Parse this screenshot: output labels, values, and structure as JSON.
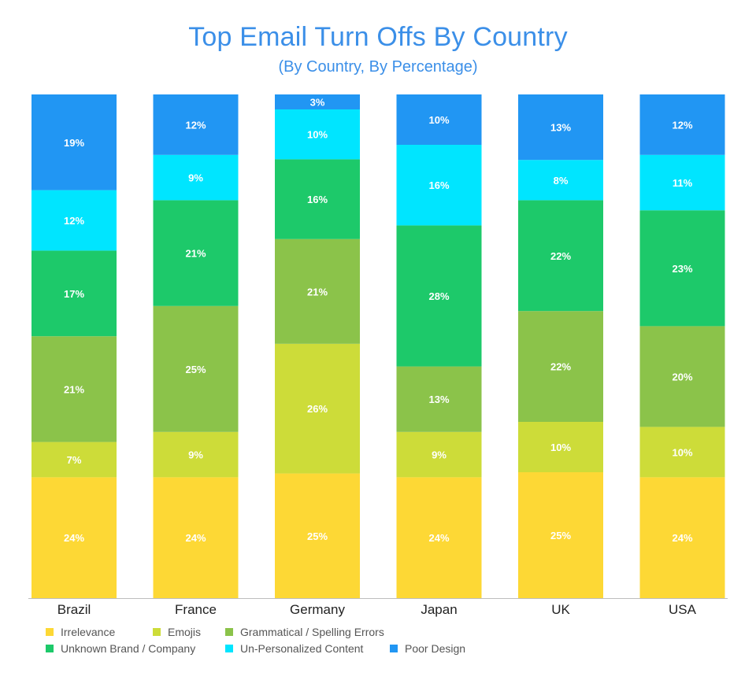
{
  "chart_data": {
    "type": "bar",
    "stacked": true,
    "percent_stacked": true,
    "title": "Top Email Turn Offs By Country",
    "subtitle": "(By Country, By Percentage)",
    "xlabel": "",
    "ylabel": "",
    "ylim": [
      0,
      100
    ],
    "grid": false,
    "legend_position": "bottom-left",
    "categories": [
      "Brazil",
      "France",
      "Germany",
      "Japan",
      "UK",
      "USA"
    ],
    "series": [
      {
        "name": "Irrelevance",
        "color": "#fdd835",
        "values": [
          24,
          24,
          25,
          24,
          25,
          24
        ]
      },
      {
        "name": "Emojis",
        "color": "#cddc39",
        "values": [
          7,
          9,
          26,
          9,
          10,
          10
        ]
      },
      {
        "name": "Grammatical / Spelling Errors",
        "color": "#8bc34a",
        "values": [
          21,
          25,
          21,
          13,
          22,
          20
        ]
      },
      {
        "name": "Unknown Brand / Company",
        "color": "#1dc96a",
        "values": [
          17,
          21,
          16,
          28,
          22,
          23
        ]
      },
      {
        "name": "Un-Personalized Content",
        "color": "#00e5ff",
        "values": [
          12,
          9,
          10,
          16,
          8,
          11
        ]
      },
      {
        "name": "Poor Design",
        "color": "#2196f3",
        "values": [
          19,
          12,
          3,
          10,
          13,
          12
        ]
      }
    ]
  }
}
